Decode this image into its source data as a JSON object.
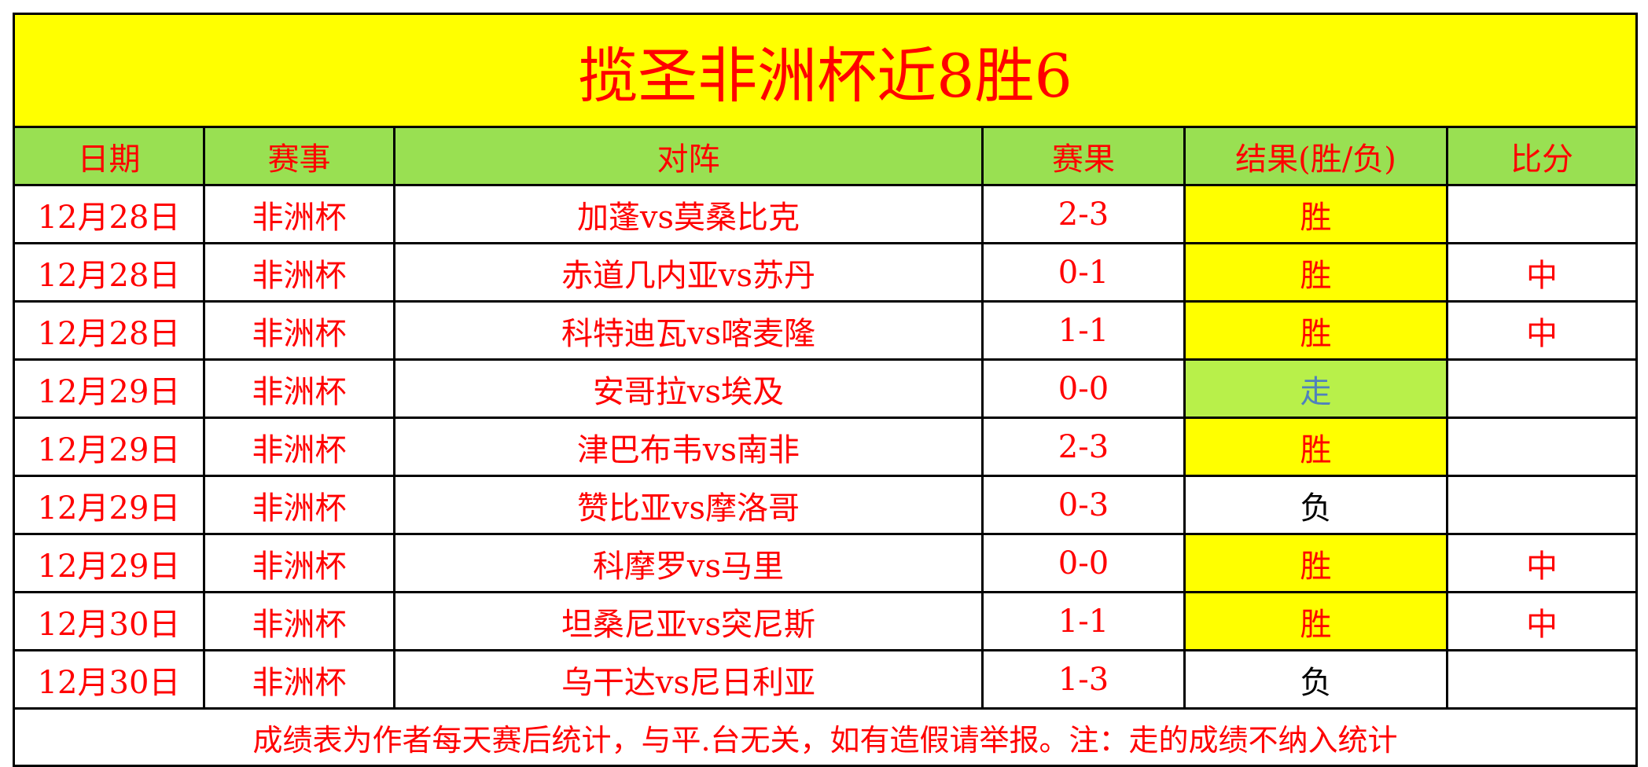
{
  "title": "揽圣非洲杯近8胜6",
  "headers": [
    "日期",
    "赛事",
    "对阵",
    "赛果",
    "结果(胜/负)",
    "比分"
  ],
  "colors": {
    "text": "#ff0000",
    "title_bg": "#ffff00",
    "header_bg": "#99e052",
    "win_bg": "#ffff00",
    "draw_bg": "#b8f04a",
    "draw_text": "#4f81bd",
    "loss_text": "#000000"
  },
  "rows": [
    {
      "date": "12月28日",
      "event": "非洲杯",
      "match": "加蓬vs莫桑比克",
      "score": "2-3",
      "result": "胜",
      "type": "win",
      "mark": ""
    },
    {
      "date": "12月28日",
      "event": "非洲杯",
      "match": "赤道几内亚vs苏丹",
      "score": "0-1",
      "result": "胜",
      "type": "win",
      "mark": "中"
    },
    {
      "date": "12月28日",
      "event": "非洲杯",
      "match": "科特迪瓦vs喀麦隆",
      "score": "1-1",
      "result": "胜",
      "type": "win",
      "mark": "中"
    },
    {
      "date": "12月29日",
      "event": "非洲杯",
      "match": "安哥拉vs埃及",
      "score": "0-0",
      "result": "走",
      "type": "draw",
      "mark": ""
    },
    {
      "date": "12月29日",
      "event": "非洲杯",
      "match": "津巴布韦vs南非",
      "score": "2-3",
      "result": "胜",
      "type": "win",
      "mark": ""
    },
    {
      "date": "12月29日",
      "event": "非洲杯",
      "match": "赞比亚vs摩洛哥",
      "score": "0-3",
      "result": "负",
      "type": "loss",
      "mark": ""
    },
    {
      "date": "12月29日",
      "event": "非洲杯",
      "match": "科摩罗vs马里",
      "score": "0-0",
      "result": "胜",
      "type": "win",
      "mark": "中"
    },
    {
      "date": "12月30日",
      "event": "非洲杯",
      "match": "坦桑尼亚vs突尼斯",
      "score": "1-1",
      "result": "胜",
      "type": "win",
      "mark": "中"
    },
    {
      "date": "12月30日",
      "event": "非洲杯",
      "match": "乌干达vs尼日利亚",
      "score": "1-3",
      "result": "负",
      "type": "loss",
      "mark": ""
    }
  ],
  "footer": "成绩表为作者每天赛后统计，与平.台无关，如有造假请举报。注：走的成绩不纳入统计"
}
